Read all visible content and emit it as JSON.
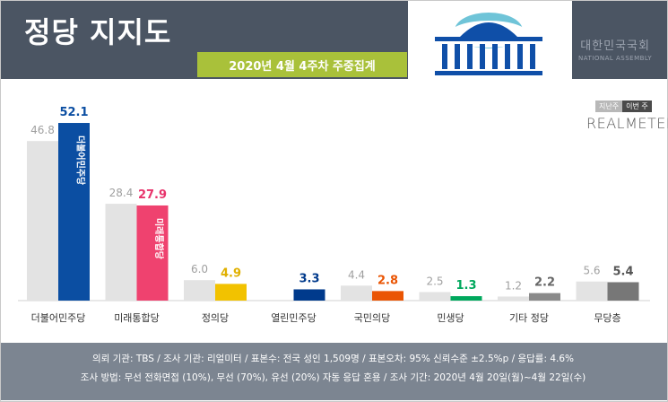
{
  "header": {
    "title": "정당 지지도",
    "subtitle": "2020년 4월 4주차 주중집계",
    "assembly_kr": "대한민국국회",
    "assembly_en": "NATIONAL ASSEMBLY"
  },
  "legend": {
    "prev": "지난주",
    "this": "이번 주",
    "brand": "REALMETER"
  },
  "footer": {
    "line1": "의뢰 기관: TBS / 조사 기관: 리얼미터 / 표본수: 전국 성인 1,509명 / 표본오차: 95% 신뢰수준 ±2.5%p / 응답률: 4.6%",
    "line2": "조사 방법: 무선 전화면접 (10%), 무선 (70%), 유선 (20%) 자동 응답 혼용 / 조사 기간: 2020년 4월 20일(월)~4월 22일(수)"
  },
  "colors": {
    "prev": "#e3e3e3",
    "header": "#4b5563",
    "banner": "#a9c13a",
    "footer": "#7c8591"
  },
  "chart_data": {
    "type": "bar",
    "title": "정당 지지도",
    "categories": [
      "더불어민주당",
      "미래통합당",
      "정의당",
      "열린민주당",
      "국민의당",
      "민생당",
      "기타 정당",
      "무당층"
    ],
    "series": [
      {
        "name": "지난주",
        "values": [
          46.8,
          28.4,
          6.0,
          null,
          4.4,
          2.5,
          1.2,
          5.6
        ]
      },
      {
        "name": "이번 주",
        "values": [
          52.1,
          27.9,
          4.9,
          3.3,
          2.8,
          1.3,
          2.2,
          5.4
        ]
      }
    ],
    "value_labels_prev": [
      "46.8",
      "28.4",
      "6.0",
      "",
      "4.4",
      "2.5",
      "1.2",
      "5.6"
    ],
    "value_labels_this": [
      "52.1",
      "27.9",
      "4.9",
      "3.3",
      "2.8",
      "1.3",
      "2.2",
      "5.4"
    ],
    "current_colors": [
      "#0b4ea2",
      "#ef426f",
      "#f2c200",
      "#003a8c",
      "#ea5504",
      "#00a85d",
      "#8a8a8a",
      "#777777"
    ],
    "label_colors": [
      "#0b4ea2",
      "#e8336b",
      "#e0b000",
      "#003a8c",
      "#ea5504",
      "#00a85d",
      "#666666",
      "#555555"
    ],
    "bar_labels": [
      "더불어민주당",
      "미래통합당",
      "",
      "",
      "",
      "",
      "",
      ""
    ],
    "ylim": [
      0,
      60
    ],
    "legend_position": "top-right"
  }
}
